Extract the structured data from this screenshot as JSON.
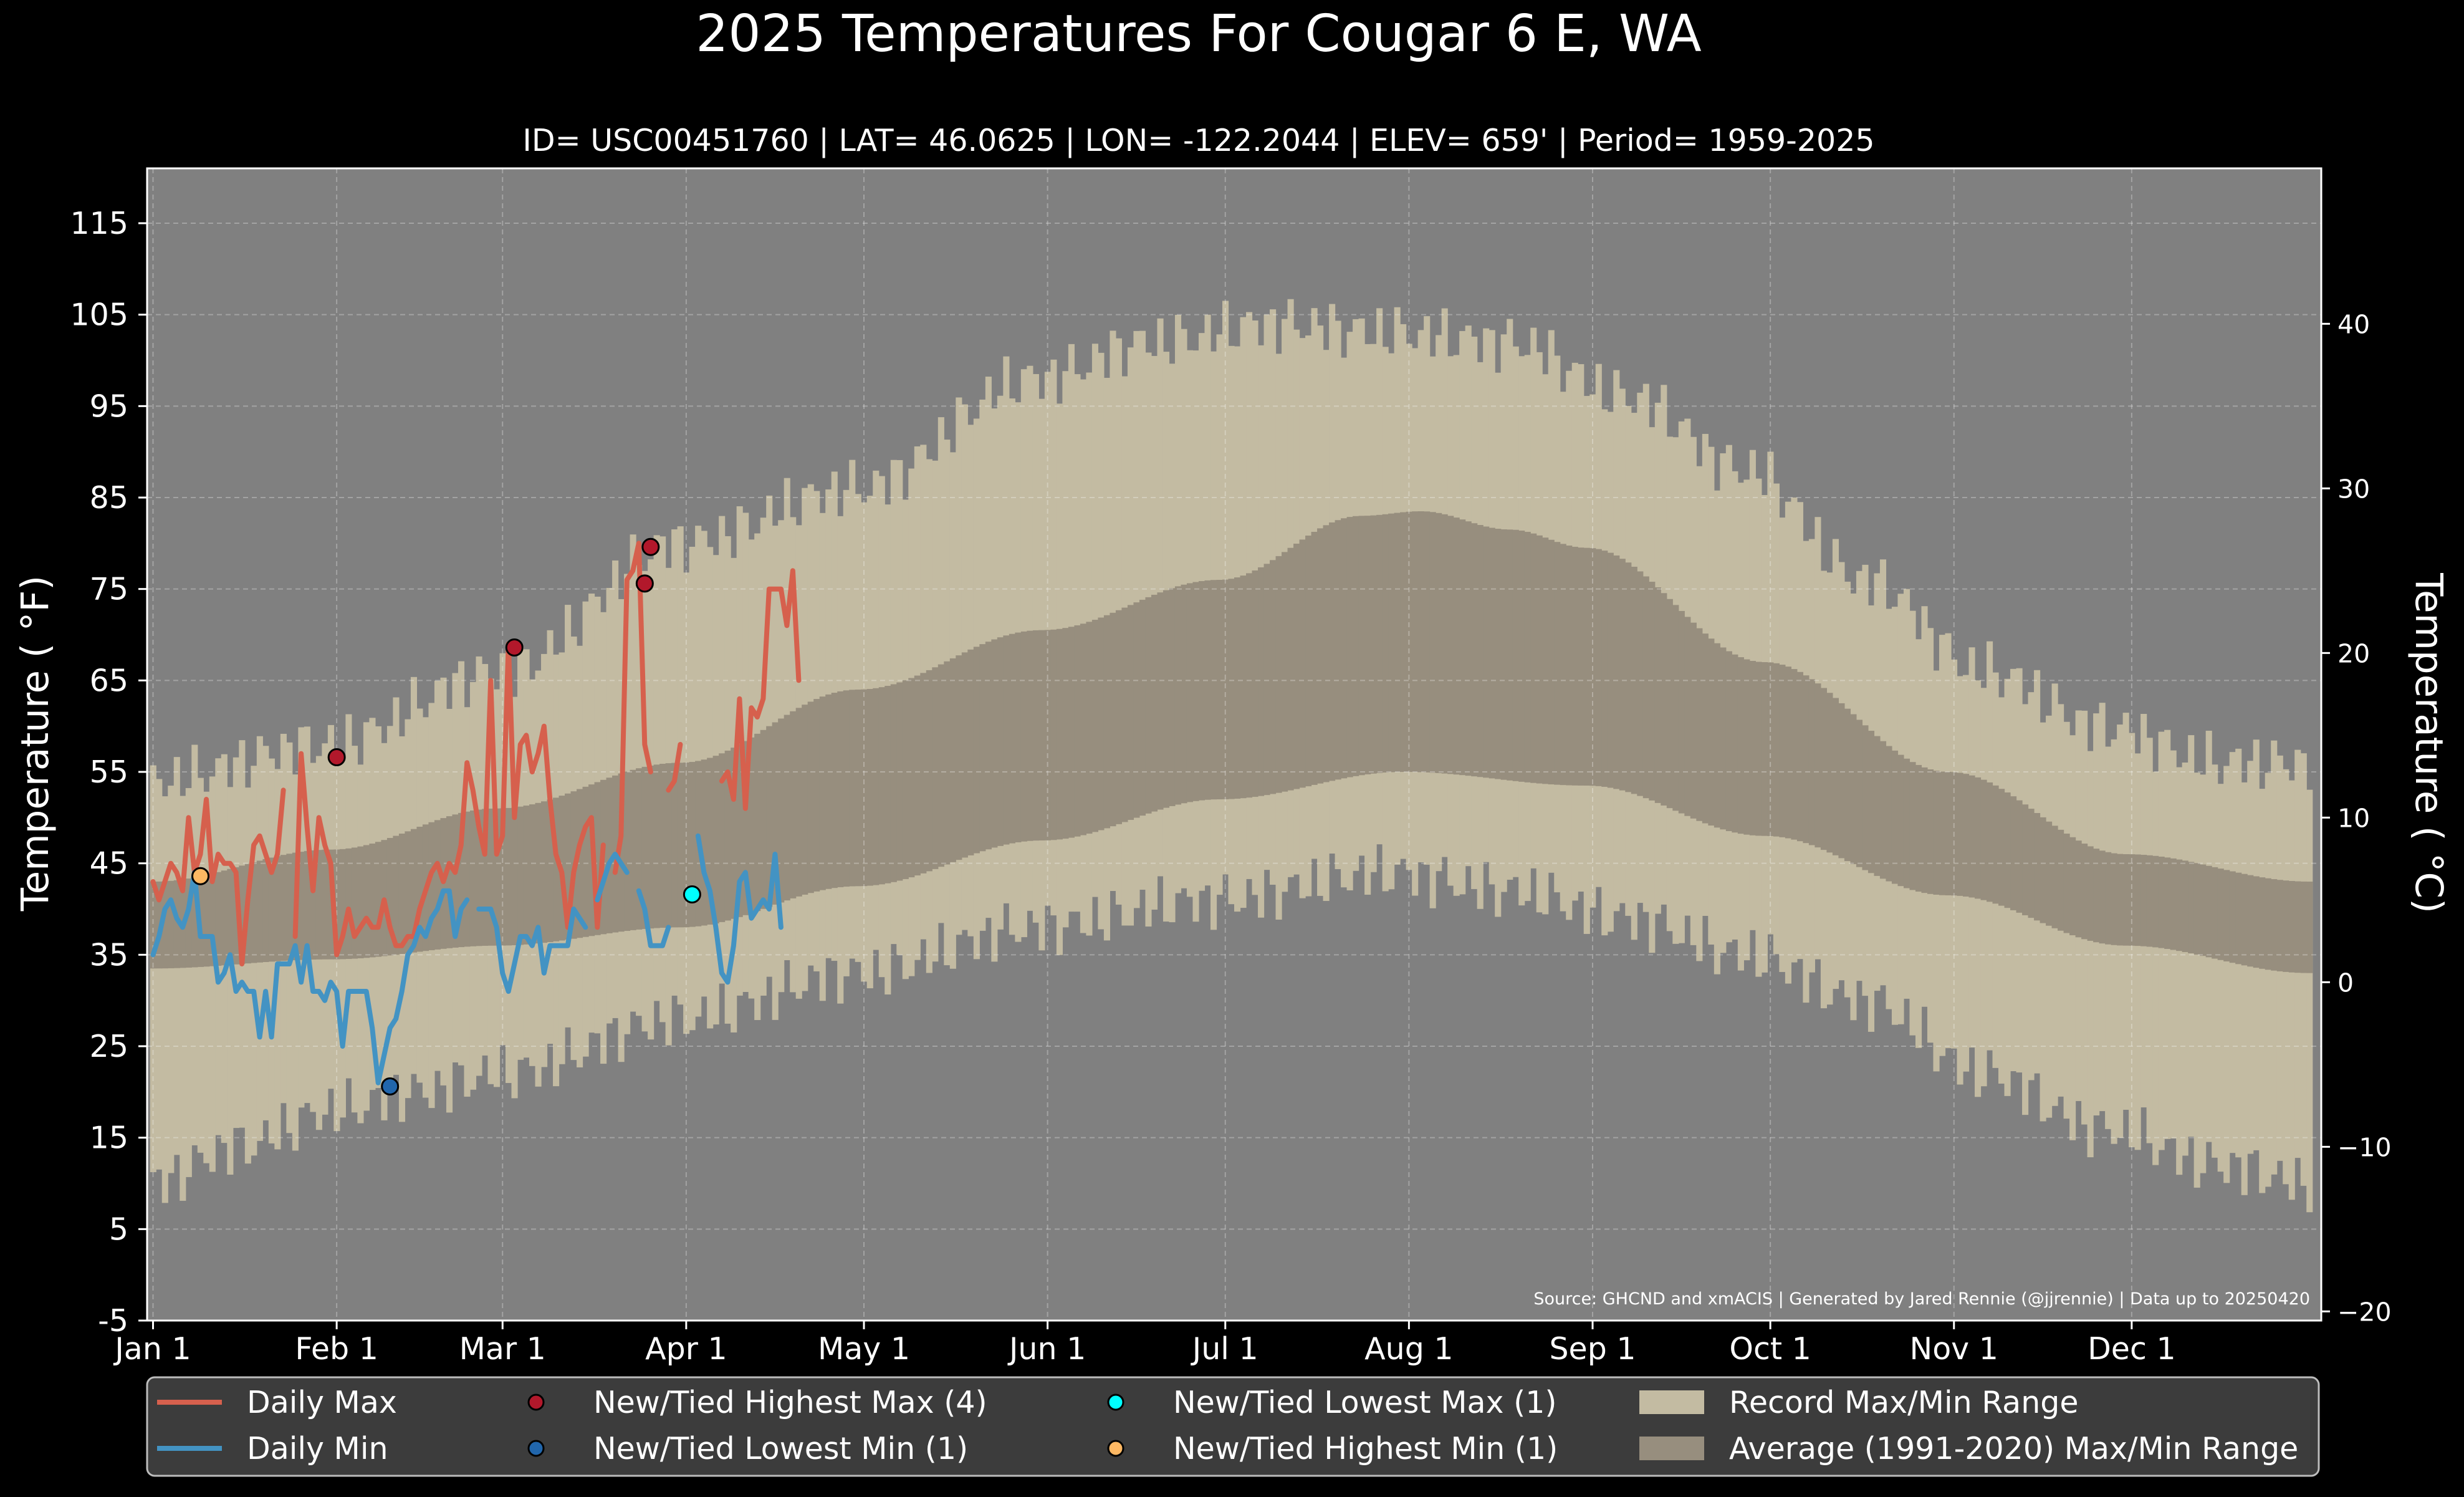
{
  "chart_data": {
    "type": "line",
    "title": "2025 Temperatures For Cougar 6 E, WA",
    "subtitle": "ID= USC00451760 | LAT= 46.0625 | LON= -122.2044 | ELEV= 659' | Period= 1959-2025",
    "ylabel": "Temperature ( °F)",
    "ylabel_right": "Temperature ( °C)",
    "source_note": "Source: GHCND and xmACIS | Generated by Jared Rennie (@jjrennie) | Data up to 20250420",
    "ylim": [
      -5,
      121
    ],
    "yticks": [
      -5,
      5,
      15,
      25,
      35,
      45,
      55,
      65,
      75,
      85,
      95,
      105,
      115
    ],
    "yticks_right": [
      -20,
      -10,
      0,
      10,
      20,
      30,
      40
    ],
    "xlim": [
      0,
      367
    ],
    "month_ticks": [
      {
        "label": "Jan 1",
        "day": 1
      },
      {
        "label": "Feb 1",
        "day": 32
      },
      {
        "label": "Mar 1",
        "day": 60
      },
      {
        "label": "Apr 1",
        "day": 91
      },
      {
        "label": "May 1",
        "day": 121
      },
      {
        "label": "Jun 1",
        "day": 152
      },
      {
        "label": "Jul 1",
        "day": 182
      },
      {
        "label": "Aug 1",
        "day": 213
      },
      {
        "label": "Sep 1",
        "day": 244
      },
      {
        "label": "Oct 1",
        "day": 274
      },
      {
        "label": "Nov 1",
        "day": 305
      },
      {
        "label": "Dec 1",
        "day": 335
      }
    ],
    "grid": true,
    "legend_position": "bottom",
    "colors": {
      "background": "#000000",
      "plot_background": "#808080",
      "record_range": "#c3bba2",
      "normal_range": "#978e7e",
      "daily_max": "#d6604d",
      "daily_min": "#4393c3",
      "new_highest_max": "#b2182b",
      "new_lowest_min": "#2166ac",
      "new_lowest_max": "#00ffff",
      "new_highest_min": "#fdb863"
    },
    "record_max_anchors": [
      [
        1,
        54
      ],
      [
        30,
        58
      ],
      [
        60,
        66
      ],
      [
        90,
        80
      ],
      [
        120,
        86
      ],
      [
        150,
        98
      ],
      [
        170,
        102
      ],
      [
        190,
        104
      ],
      [
        210,
        103
      ],
      [
        230,
        102
      ],
      [
        250,
        96
      ],
      [
        270,
        88
      ],
      [
        290,
        76
      ],
      [
        310,
        66
      ],
      [
        330,
        60
      ],
      [
        350,
        56
      ],
      [
        365,
        56
      ]
    ],
    "record_min_anchors": [
      [
        1,
        10
      ],
      [
        15,
        14
      ],
      [
        32,
        18
      ],
      [
        45,
        20
      ],
      [
        60,
        22
      ],
      [
        90,
        28
      ],
      [
        120,
        33
      ],
      [
        150,
        38
      ],
      [
        180,
        41
      ],
      [
        210,
        44
      ],
      [
        230,
        42
      ],
      [
        250,
        39
      ],
      [
        270,
        35
      ],
      [
        290,
        30
      ],
      [
        310,
        22
      ],
      [
        330,
        16
      ],
      [
        350,
        12
      ],
      [
        365,
        10
      ]
    ],
    "normal_max_anchors": [
      [
        1,
        43
      ],
      [
        31,
        46.5
      ],
      [
        59,
        51
      ],
      [
        90,
        56
      ],
      [
        120,
        64
      ],
      [
        151,
        70.5
      ],
      [
        181,
        76
      ],
      [
        205,
        83
      ],
      [
        215,
        83.5
      ],
      [
        230,
        81.5
      ],
      [
        243,
        79.5
      ],
      [
        273,
        67
      ],
      [
        304,
        55
      ],
      [
        334,
        46
      ],
      [
        365,
        43
      ]
    ],
    "normal_min_anchors": [
      [
        1,
        33.5
      ],
      [
        31,
        34.5
      ],
      [
        59,
        36
      ],
      [
        90,
        38
      ],
      [
        120,
        42.5
      ],
      [
        151,
        47.5
      ],
      [
        181,
        52
      ],
      [
        212,
        55
      ],
      [
        243,
        53.5
      ],
      [
        273,
        48
      ],
      [
        304,
        41.5
      ],
      [
        334,
        36
      ],
      [
        365,
        33
      ]
    ],
    "series": [
      {
        "name": "Daily Max",
        "key": "daily_max",
        "x": [
          1,
          2,
          3,
          4,
          5,
          6,
          7,
          8,
          9,
          10,
          11,
          12,
          13,
          14,
          15,
          16,
          17,
          18,
          19,
          20,
          21,
          22,
          23,
          24,
          25,
          26,
          27,
          28,
          29,
          30,
          31,
          32,
          33,
          34,
          35,
          36,
          37,
          38,
          39,
          40,
          41,
          42,
          43,
          44,
          45,
          46,
          47,
          48,
          49,
          50,
          51,
          52,
          53,
          54,
          55,
          56,
          57,
          58,
          59,
          60,
          61,
          62,
          63,
          64,
          65,
          66,
          67,
          68,
          69,
          70,
          71,
          72,
          73,
          74,
          75,
          76,
          77,
          78,
          79,
          80,
          81,
          82,
          83,
          84,
          85,
          86,
          87,
          88,
          89,
          90,
          91,
          92,
          93,
          94,
          95,
          96,
          97,
          98,
          99,
          100,
          101,
          102,
          103,
          104,
          105,
          106,
          107,
          108,
          109,
          110
        ],
        "values": [
          43,
          41,
          43,
          45,
          44,
          42,
          50,
          44,
          46,
          52,
          43,
          46,
          45,
          45,
          44,
          34,
          41,
          47,
          48,
          46,
          44,
          46,
          53,
          null,
          37,
          57,
          49,
          42,
          50,
          47,
          45,
          35,
          37,
          40,
          37,
          38,
          39,
          38,
          38,
          41,
          38,
          36,
          36,
          37,
          37,
          40,
          42,
          44,
          45,
          43,
          45,
          44,
          47,
          56,
          53,
          49,
          46,
          65,
          46,
          48,
          69,
          50,
          58,
          59,
          55,
          57,
          60,
          52,
          46,
          44,
          38,
          44,
          47,
          49,
          50,
          38,
          47,
          null,
          44,
          48,
          76,
          77,
          80,
          58,
          55,
          null,
          null,
          53,
          54,
          58,
          null,
          null,
          null,
          null,
          null,
          null,
          54,
          55,
          52,
          63,
          51,
          62,
          61,
          63,
          75,
          75,
          75,
          71,
          77,
          65
        ]
      },
      {
        "name": "Daily Min",
        "key": "daily_min",
        "x": [
          1,
          2,
          3,
          4,
          5,
          6,
          7,
          8,
          9,
          10,
          11,
          12,
          13,
          14,
          15,
          16,
          17,
          18,
          19,
          20,
          21,
          22,
          23,
          24,
          25,
          26,
          27,
          28,
          29,
          30,
          31,
          32,
          33,
          34,
          35,
          36,
          37,
          38,
          39,
          40,
          41,
          42,
          43,
          44,
          45,
          46,
          47,
          48,
          49,
          50,
          51,
          52,
          53,
          54,
          55,
          56,
          57,
          58,
          59,
          60,
          61,
          62,
          63,
          64,
          65,
          66,
          67,
          68,
          69,
          70,
          71,
          72,
          73,
          74,
          75,
          76,
          77,
          78,
          79,
          80,
          81,
          82,
          83,
          84,
          85,
          86,
          87,
          88,
          89,
          90,
          91,
          92,
          93,
          94,
          95,
          96,
          97,
          98,
          99,
          100,
          101,
          102,
          103,
          104,
          105,
          106,
          107,
          108,
          109,
          110
        ],
        "values": [
          35,
          37,
          40,
          41,
          39,
          38,
          40,
          44,
          37,
          37,
          37,
          32,
          33,
          35,
          31,
          32,
          31,
          31,
          26,
          31,
          26,
          34,
          34,
          34,
          36,
          32,
          36,
          31,
          31,
          30,
          32,
          31,
          25,
          31,
          31,
          31,
          31,
          27,
          21,
          24,
          27,
          28,
          31,
          35,
          36,
          38,
          37,
          39,
          40,
          42,
          42,
          37,
          40,
          41,
          null,
          40,
          40,
          40,
          38,
          33,
          31,
          34,
          37,
          37,
          36,
          38,
          33,
          36,
          36,
          36,
          36,
          40,
          39,
          38,
          null,
          41,
          43,
          45,
          46,
          45,
          44,
          null,
          42,
          40,
          36,
          36,
          36,
          38,
          null,
          null,
          null,
          null,
          48,
          44,
          42,
          38,
          33,
          32,
          36,
          43,
          44,
          39,
          40,
          41,
          40,
          46,
          38,
          null,
          null,
          null
        ]
      }
    ],
    "markers": [
      {
        "name": "New/Tied Highest Max (4)",
        "key": "new_highest_max",
        "points": [
          [
            32,
            56.6
          ],
          [
            62,
            68.6
          ],
          [
            84,
            75.6
          ],
          [
            85,
            79.6
          ]
        ]
      },
      {
        "name": "New/Tied Lowest Min (1)",
        "key": "new_lowest_min",
        "points": [
          [
            41,
            20.6
          ]
        ]
      },
      {
        "name": "New/Tied Lowest Max (1)",
        "key": "new_lowest_max",
        "points": [
          [
            92,
            41.6
          ]
        ]
      },
      {
        "name": "New/Tied Highest Min (1)",
        "key": "new_highest_min",
        "points": [
          [
            9,
            43.6
          ]
        ]
      }
    ],
    "legend": [
      {
        "label": "Daily Max",
        "kind": "line",
        "key": "daily_max"
      },
      {
        "label": "Daily Min",
        "kind": "line",
        "key": "daily_min"
      },
      {
        "label": "New/Tied Highest Max (4)",
        "kind": "marker",
        "key": "new_highest_max"
      },
      {
        "label": "New/Tied Lowest Min (1)",
        "kind": "marker",
        "key": "new_lowest_min"
      },
      {
        "label": "New/Tied Lowest Max (1)",
        "kind": "marker",
        "key": "new_lowest_max"
      },
      {
        "label": "New/Tied Highest Min (1)",
        "kind": "marker",
        "key": "new_highest_min"
      },
      {
        "label": "Record Max/Min Range",
        "kind": "patch",
        "key": "record_range"
      },
      {
        "label": "Average (1991-2020) Max/Min Range",
        "kind": "patch",
        "key": "normal_range"
      }
    ]
  }
}
